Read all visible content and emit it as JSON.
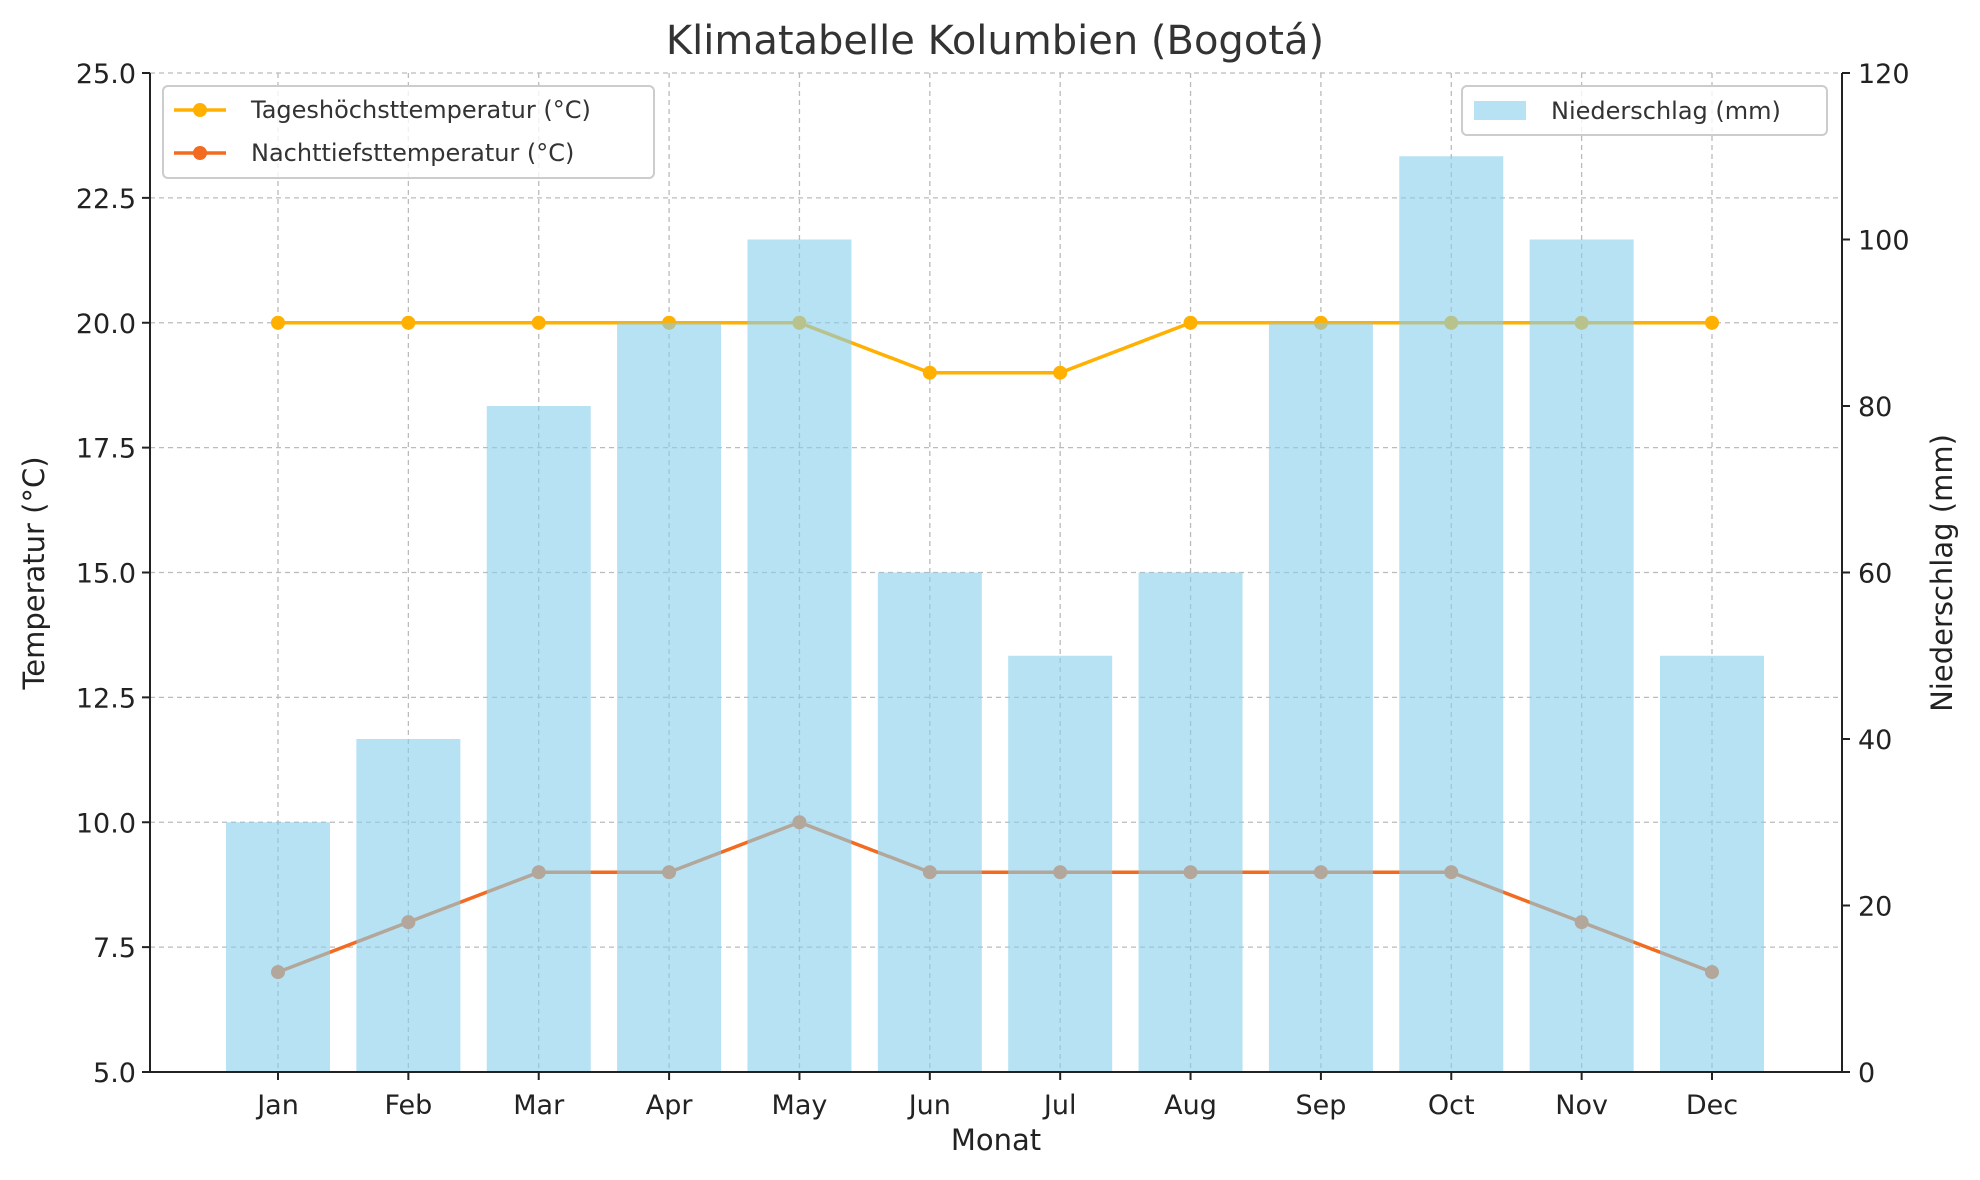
{
  "chart_data": {
    "type": "bar+line",
    "title": "Klimatabelle Kolumbien (Bogotá)",
    "xlabel": "Monat",
    "ylabel": "Temperatur (°C)",
    "y2label": "Niederschlag (mm)",
    "categories": [
      "Jan",
      "Feb",
      "Mar",
      "Apr",
      "May",
      "Jun",
      "Jul",
      "Aug",
      "Sep",
      "Oct",
      "Nov",
      "Dec"
    ],
    "ylim": [
      5,
      25
    ],
    "y2lim": [
      0,
      120
    ],
    "yticks": [
      "5.0",
      "7.5",
      "10.0",
      "12.5",
      "15.0",
      "17.5",
      "20.0",
      "22.5",
      "25.0"
    ],
    "y2ticks": [
      "0",
      "20",
      "40",
      "60",
      "80",
      "100",
      "120"
    ],
    "grid": true,
    "series": [
      {
        "name": "Tageshöchsttemperatur (°C)",
        "type": "line",
        "axis": "left",
        "color": "#FFB000",
        "values": [
          20,
          20,
          20,
          20,
          20,
          19,
          19,
          20,
          20,
          20,
          20,
          20
        ]
      },
      {
        "name": "Nachttiefsttemperatur (°C)",
        "type": "line",
        "axis": "left",
        "color": "#F26B21",
        "values": [
          7,
          8,
          9,
          9,
          10,
          9,
          9,
          9,
          9,
          9,
          8,
          7
        ]
      },
      {
        "name": "Niederschlag (mm)",
        "type": "bar",
        "axis": "right",
        "color": "#87CEEB",
        "values": [
          30,
          40,
          80,
          90,
          100,
          60,
          50,
          60,
          90,
          110,
          100,
          50
        ]
      }
    ],
    "legend": {
      "left_placement": "top-left",
      "right_placement": "top-right"
    }
  }
}
